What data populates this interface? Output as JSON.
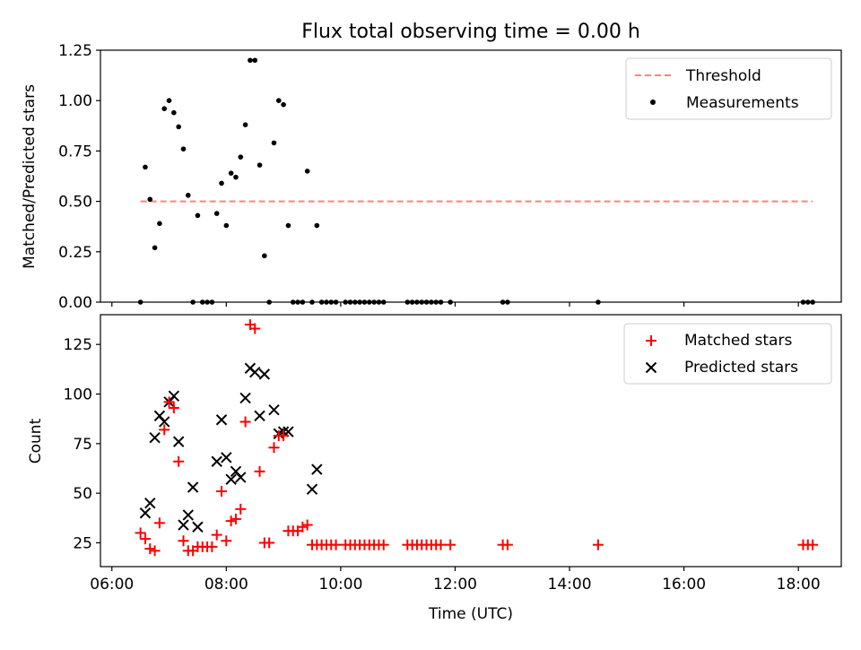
{
  "chart_data": {
    "type": "scatter",
    "title": "Flux total observing time = 0.00 h",
    "xlabel": "Time (UTC)",
    "x_ticks": [
      "06:00",
      "08:00",
      "10:00",
      "12:00",
      "14:00",
      "16:00",
      "18:00"
    ],
    "colors": {
      "threshold": "#ff8080",
      "measurements": "#000000",
      "matched": "#ff0000",
      "predicted": "#000000"
    },
    "panels": [
      {
        "ylabel": "Matched/Predicted stars",
        "ylim": [
          0,
          1.25
        ],
        "y_ticks": [
          "0.00",
          "0.25",
          "0.50",
          "0.75",
          "1.00",
          "1.25"
        ],
        "legend_position": "upper-right",
        "series": [
          {
            "name": "Threshold",
            "kind": "dashed-line",
            "x": [
              "06:30",
              "18:15"
            ],
            "values": [
              0.5,
              0.5
            ]
          },
          {
            "name": "Measurements",
            "kind": "points",
            "x": [
              "06:30",
              "06:35",
              "06:40",
              "06:45",
              "06:50",
              "06:55",
              "07:00",
              "07:05",
              "07:10",
              "07:15",
              "07:20",
              "07:25",
              "07:30",
              "07:35",
              "07:40",
              "07:45",
              "07:50",
              "07:55",
              "08:00",
              "08:05",
              "08:10",
              "08:15",
              "08:20",
              "08:25",
              "08:30",
              "08:35",
              "08:40",
              "08:45",
              "08:50",
              "08:55",
              "09:00",
              "09:05",
              "09:10",
              "09:15",
              "09:20",
              "09:25",
              "09:30",
              "09:35",
              "09:40",
              "09:45",
              "09:50",
              "09:55",
              "10:05",
              "10:10",
              "10:15",
              "10:20",
              "10:25",
              "10:30",
              "10:35",
              "10:40",
              "10:45",
              "11:10",
              "11:15",
              "11:20",
              "11:25",
              "11:30",
              "11:35",
              "11:40",
              "11:45",
              "11:55",
              "12:50",
              "12:55",
              "14:30",
              "18:05",
              "18:10",
              "18:15"
            ],
            "values": [
              0,
              0.67,
              0.51,
              0.27,
              0.39,
              0.96,
              1.0,
              0.94,
              0.87,
              0.76,
              0.53,
              0,
              0.43,
              0,
              0,
              0,
              0.44,
              0.59,
              0.38,
              0.64,
              0.62,
              0.72,
              0.88,
              1.2,
              1.2,
              0.68,
              0.23,
              0,
              0.79,
              1.0,
              0.98,
              0.38,
              0,
              0,
              0,
              0.65,
              0,
              0.38,
              0,
              0,
              0,
              0,
              0,
              0,
              0,
              0,
              0,
              0,
              0,
              0,
              0,
              0,
              0,
              0,
              0,
              0,
              0,
              0,
              0,
              0,
              0,
              0,
              0,
              0,
              0,
              0
            ]
          }
        ]
      },
      {
        "ylabel": "Count",
        "ylim": [
          13,
          140
        ],
        "y_ticks": [
          "25",
          "50",
          "75",
          "100",
          "125"
        ],
        "legend_position": "upper-right",
        "series": [
          {
            "name": "Matched stars",
            "kind": "plus",
            "x": [
              "06:30",
              "06:35",
              "06:40",
              "06:45",
              "06:50",
              "06:55",
              "07:00",
              "07:05",
              "07:10",
              "07:15",
              "07:20",
              "07:25",
              "07:30",
              "07:35",
              "07:40",
              "07:45",
              "07:50",
              "07:55",
              "08:00",
              "08:05",
              "08:10",
              "08:15",
              "08:20",
              "08:25",
              "08:30",
              "08:35",
              "08:40",
              "08:45",
              "08:50",
              "08:55",
              "09:00",
              "09:05",
              "09:10",
              "09:15",
              "09:20",
              "09:25",
              "09:30",
              "09:35",
              "09:40",
              "09:45",
              "09:50",
              "09:55",
              "10:05",
              "10:10",
              "10:15",
              "10:20",
              "10:25",
              "10:30",
              "10:35",
              "10:40",
              "10:45",
              "11:10",
              "11:15",
              "11:20",
              "11:25",
              "11:30",
              "11:35",
              "11:40",
              "11:45",
              "11:55",
              "12:50",
              "12:55",
              "14:30",
              "18:05",
              "18:10",
              "18:15"
            ],
            "values": [
              30,
              27,
              22,
              21,
              35,
              82,
              96,
              93,
              66,
              26,
              21,
              21,
              23,
              23,
              23,
              23,
              29,
              51,
              26,
              36,
              37,
              42,
              86,
              135,
              133,
              61,
              25,
              25,
              73,
              79,
              79,
              31,
              31,
              31,
              33,
              34,
              24,
              24,
              24,
              24,
              24,
              24,
              24,
              24,
              24,
              24,
              24,
              24,
              24,
              24,
              24,
              24,
              24,
              24,
              24,
              24,
              24,
              24,
              24,
              24,
              24,
              24,
              24,
              24,
              24,
              24
            ]
          },
          {
            "name": "Predicted stars",
            "kind": "x",
            "x": [
              "06:35",
              "06:40",
              "06:45",
              "06:50",
              "06:55",
              "07:00",
              "07:05",
              "07:10",
              "07:15",
              "07:20",
              "07:25",
              "07:30",
              "07:50",
              "07:55",
              "08:00",
              "08:05",
              "08:10",
              "08:15",
              "08:20",
              "08:25",
              "08:30",
              "08:35",
              "08:40",
              "08:50",
              "08:55",
              "09:00",
              "09:05",
              "09:30",
              "09:35"
            ],
            "values": [
              40,
              45,
              78,
              89,
              86,
              96,
              99,
              76,
              34,
              39,
              53,
              33,
              66,
              87,
              68,
              57,
              61,
              58,
              98,
              113,
              111,
              89,
              110,
              92,
              80,
              81,
              81,
              52,
              62
            ]
          }
        ]
      }
    ]
  }
}
